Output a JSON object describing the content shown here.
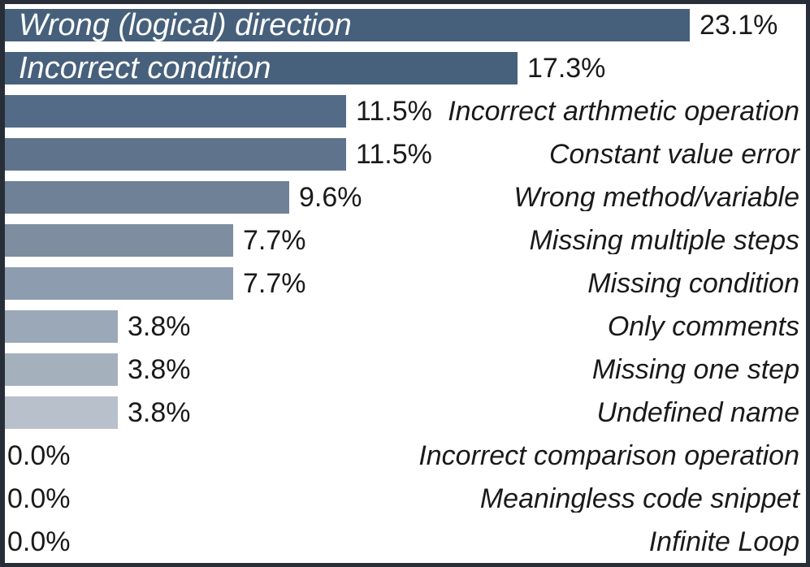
{
  "chart_data": {
    "type": "bar",
    "orientation": "horizontal",
    "title": "",
    "xlabel": "",
    "ylabel": "",
    "xlim": [
      0,
      27
    ],
    "grid": false,
    "legend": false,
    "categories": [
      "Wrong (logical) direction",
      "Incorrect condition",
      "Incorrect arthmetic operation",
      "Constant value error",
      "Wrong method/variable",
      "Missing multiple steps",
      "Missing condition",
      "Only comments",
      "Missing one step",
      "Undefined name",
      "Incorrect comparison operation",
      "Meaningless code snippet",
      "Infinite Loop"
    ],
    "values": [
      23.1,
      17.3,
      11.5,
      11.5,
      9.6,
      7.7,
      7.7,
      3.8,
      3.8,
      3.8,
      0.0,
      0.0,
      0.0
    ],
    "value_labels": [
      "23.1%",
      "17.3%",
      "11.5%",
      "11.5%",
      "9.6%",
      "7.7%",
      "7.7%",
      "3.8%",
      "3.8%",
      "3.8%",
      "0.0%",
      "0.0%",
      "0.0%"
    ],
    "label_placement": [
      "inside",
      "inside",
      "outside",
      "outside",
      "outside",
      "outside",
      "outside",
      "outside",
      "outside",
      "outside",
      "outside",
      "outside",
      "outside"
    ],
    "bar_colors": [
      "#46607b",
      "#47617c",
      "#536b86",
      "#5f748c",
      "#6e8196",
      "#7e8da0",
      "#8d9cae",
      "#9aa8b8",
      "#a5b0bd",
      "#b8c0cc",
      null,
      null,
      null
    ],
    "colors": {
      "inside_label": "#ffffff",
      "text": "#1a1a1a",
      "border": "#272e37",
      "background": "#ffffff"
    }
  }
}
